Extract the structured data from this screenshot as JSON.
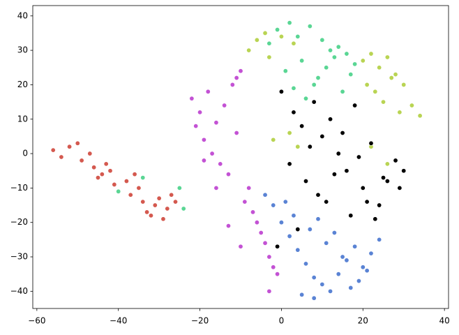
{
  "chart_data": {
    "type": "scatter",
    "xlim": [
      -61,
      41
    ],
    "ylim": [
      -45,
      43
    ],
    "xticks": [
      {
        "value": -60,
        "label": "−60"
      },
      {
        "value": -40,
        "label": "−40"
      },
      {
        "value": -20,
        "label": "−20"
      },
      0,
      20,
      40
    ],
    "yticks": [
      {
        "value": -40,
        "label": "−40"
      },
      {
        "value": -30,
        "label": "−30"
      },
      {
        "value": -20,
        "label": "−20"
      },
      {
        "value": -10,
        "label": "−10"
      },
      0,
      10,
      20,
      30,
      40
    ],
    "grid": false,
    "series": [
      {
        "color": "#d4594f",
        "x": [
          -56,
          -54,
          -52,
          -50,
          -49,
          -47,
          -46,
          -44,
          -43,
          -41,
          -40,
          -38,
          -37,
          -35,
          -34,
          -33,
          -31,
          -30,
          -29,
          -28,
          -27,
          -26,
          -45,
          -42,
          -36,
          -32
        ],
        "values": [
          1,
          -1,
          2,
          3,
          -2,
          0,
          -4,
          -6,
          -3,
          -9,
          -11,
          -8,
          -12,
          -10,
          -14,
          -17,
          -15,
          -13,
          -19,
          -16,
          -12,
          -14,
          -7,
          -5,
          -6,
          -18
        ]
      },
      {
        "color": "#5ad694",
        "x": [
          -1,
          2,
          4,
          7,
          10,
          12,
          14,
          16,
          18,
          1,
          5,
          9,
          13,
          17,
          -3,
          3,
          8,
          11,
          6,
          15,
          -34,
          -25,
          -40,
          -24
        ],
        "values": [
          36,
          38,
          34,
          37,
          33,
          30,
          31,
          29,
          26,
          24,
          27,
          22,
          28,
          23,
          32,
          19,
          20,
          25,
          16,
          18,
          -7,
          -10,
          -11,
          -16
        ]
      },
      {
        "color": "#b9d453",
        "x": [
          -8,
          -6,
          -4,
          0,
          3,
          -3,
          20,
          22,
          24,
          26,
          28,
          30,
          32,
          34,
          23,
          27,
          29,
          25,
          21,
          2,
          4,
          -2,
          22,
          26
        ],
        "values": [
          30,
          33,
          35,
          34,
          32,
          28,
          27,
          29,
          25,
          28,
          23,
          20,
          14,
          11,
          18,
          22,
          12,
          15,
          20,
          6,
          2,
          4,
          2,
          -3
        ]
      },
      {
        "color": "#c352d4",
        "x": [
          -22,
          -20,
          -18,
          -16,
          -14,
          -12,
          -10,
          -21,
          -19,
          -17,
          -15,
          -13,
          -11,
          -8,
          -9,
          -7,
          -6,
          -5,
          -4,
          -3,
          -2,
          -1,
          -10,
          -13,
          -16,
          -19,
          -11,
          -3
        ],
        "values": [
          16,
          12,
          18,
          9,
          14,
          20,
          24,
          8,
          4,
          0,
          -3,
          -6,
          22,
          -10,
          -14,
          -17,
          -20,
          -23,
          -26,
          -30,
          -33,
          -35,
          -27,
          -21,
          -10,
          -2,
          6,
          -40
        ]
      },
      {
        "color": "#5a83d4",
        "x": [
          -2,
          0,
          2,
          4,
          6,
          8,
          10,
          12,
          14,
          16,
          18,
          20,
          22,
          24,
          -4,
          3,
          7,
          11,
          15,
          19,
          5,
          9,
          13,
          17,
          21,
          1,
          8
        ],
        "values": [
          -15,
          -20,
          -24,
          -28,
          -32,
          -36,
          -38,
          -40,
          -35,
          -31,
          -27,
          -33,
          -29,
          -25,
          -12,
          -18,
          -22,
          -26,
          -30,
          -37,
          -41,
          -19,
          -23,
          -39,
          -34,
          -14,
          -42
        ]
      },
      {
        "color": "#000000",
        "x": [
          0,
          3,
          5,
          8,
          10,
          12,
          14,
          16,
          18,
          20,
          22,
          24,
          26,
          28,
          30,
          2,
          6,
          9,
          13,
          17,
          21,
          25,
          29,
          7,
          11,
          15,
          19,
          -1,
          4,
          23
        ],
        "values": [
          18,
          12,
          8,
          15,
          5,
          10,
          0,
          -5,
          14,
          -10,
          3,
          -15,
          -8,
          -2,
          -5,
          -3,
          -8,
          -12,
          -6,
          -18,
          -14,
          -7,
          -10,
          2,
          -14,
          6,
          -1,
          -27,
          -22,
          -19
        ]
      }
    ]
  }
}
